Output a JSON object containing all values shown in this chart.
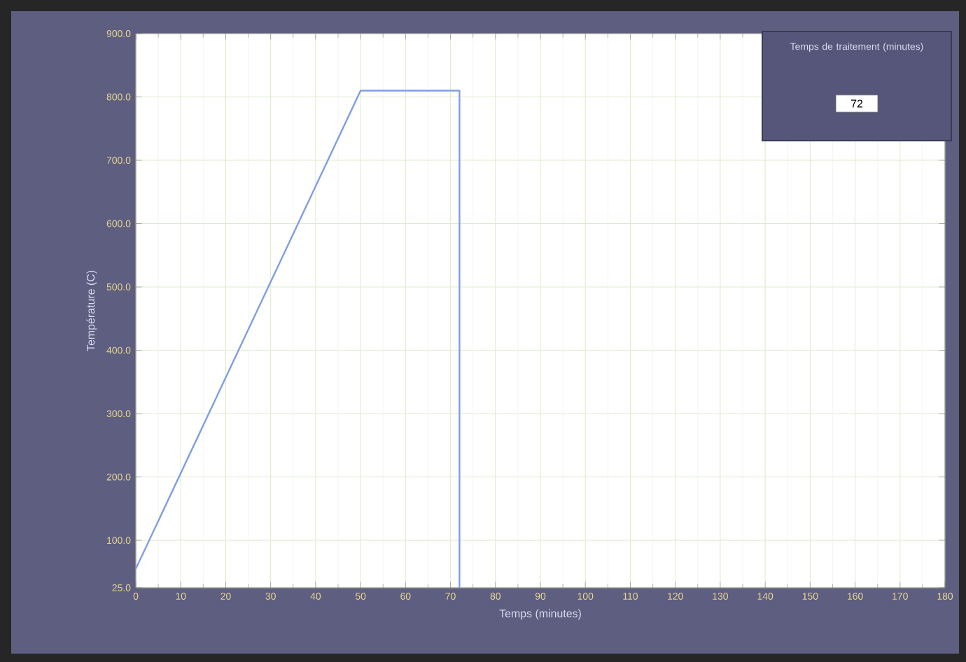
{
  "chart_data": {
    "type": "line",
    "xlabel": "Temps (minutes)",
    "ylabel": "Température (C)",
    "x": [
      0,
      50,
      72,
      72
    ],
    "series": [
      {
        "color": "#7f9fe0",
        "values": [
          55,
          810,
          810,
          25
        ]
      }
    ],
    "xlim": [
      0,
      180
    ],
    "ylim": [
      25,
      900
    ],
    "xticks": [
      0,
      10,
      20,
      30,
      40,
      50,
      60,
      70,
      80,
      90,
      100,
      110,
      120,
      130,
      140,
      150,
      160,
      170,
      180
    ],
    "yticks": [
      {
        "value": 25,
        "label": "25.0"
      },
      {
        "value": 100,
        "label": "100.0"
      },
      {
        "value": 200,
        "label": "200.0"
      },
      {
        "value": 300,
        "label": "300.0"
      },
      {
        "value": 400,
        "label": "400.0"
      },
      {
        "value": 500,
        "label": "500.0"
      },
      {
        "value": 600,
        "label": "600.0"
      },
      {
        "value": 700,
        "label": "700.0"
      },
      {
        "value": 800,
        "label": "800.0"
      },
      {
        "value": 900,
        "label": "900.0"
      }
    ],
    "grid": true,
    "marker": "none",
    "line_style": "solid",
    "annotations": [
      "Temps de traitement (minutes)",
      "72"
    ]
  }
}
